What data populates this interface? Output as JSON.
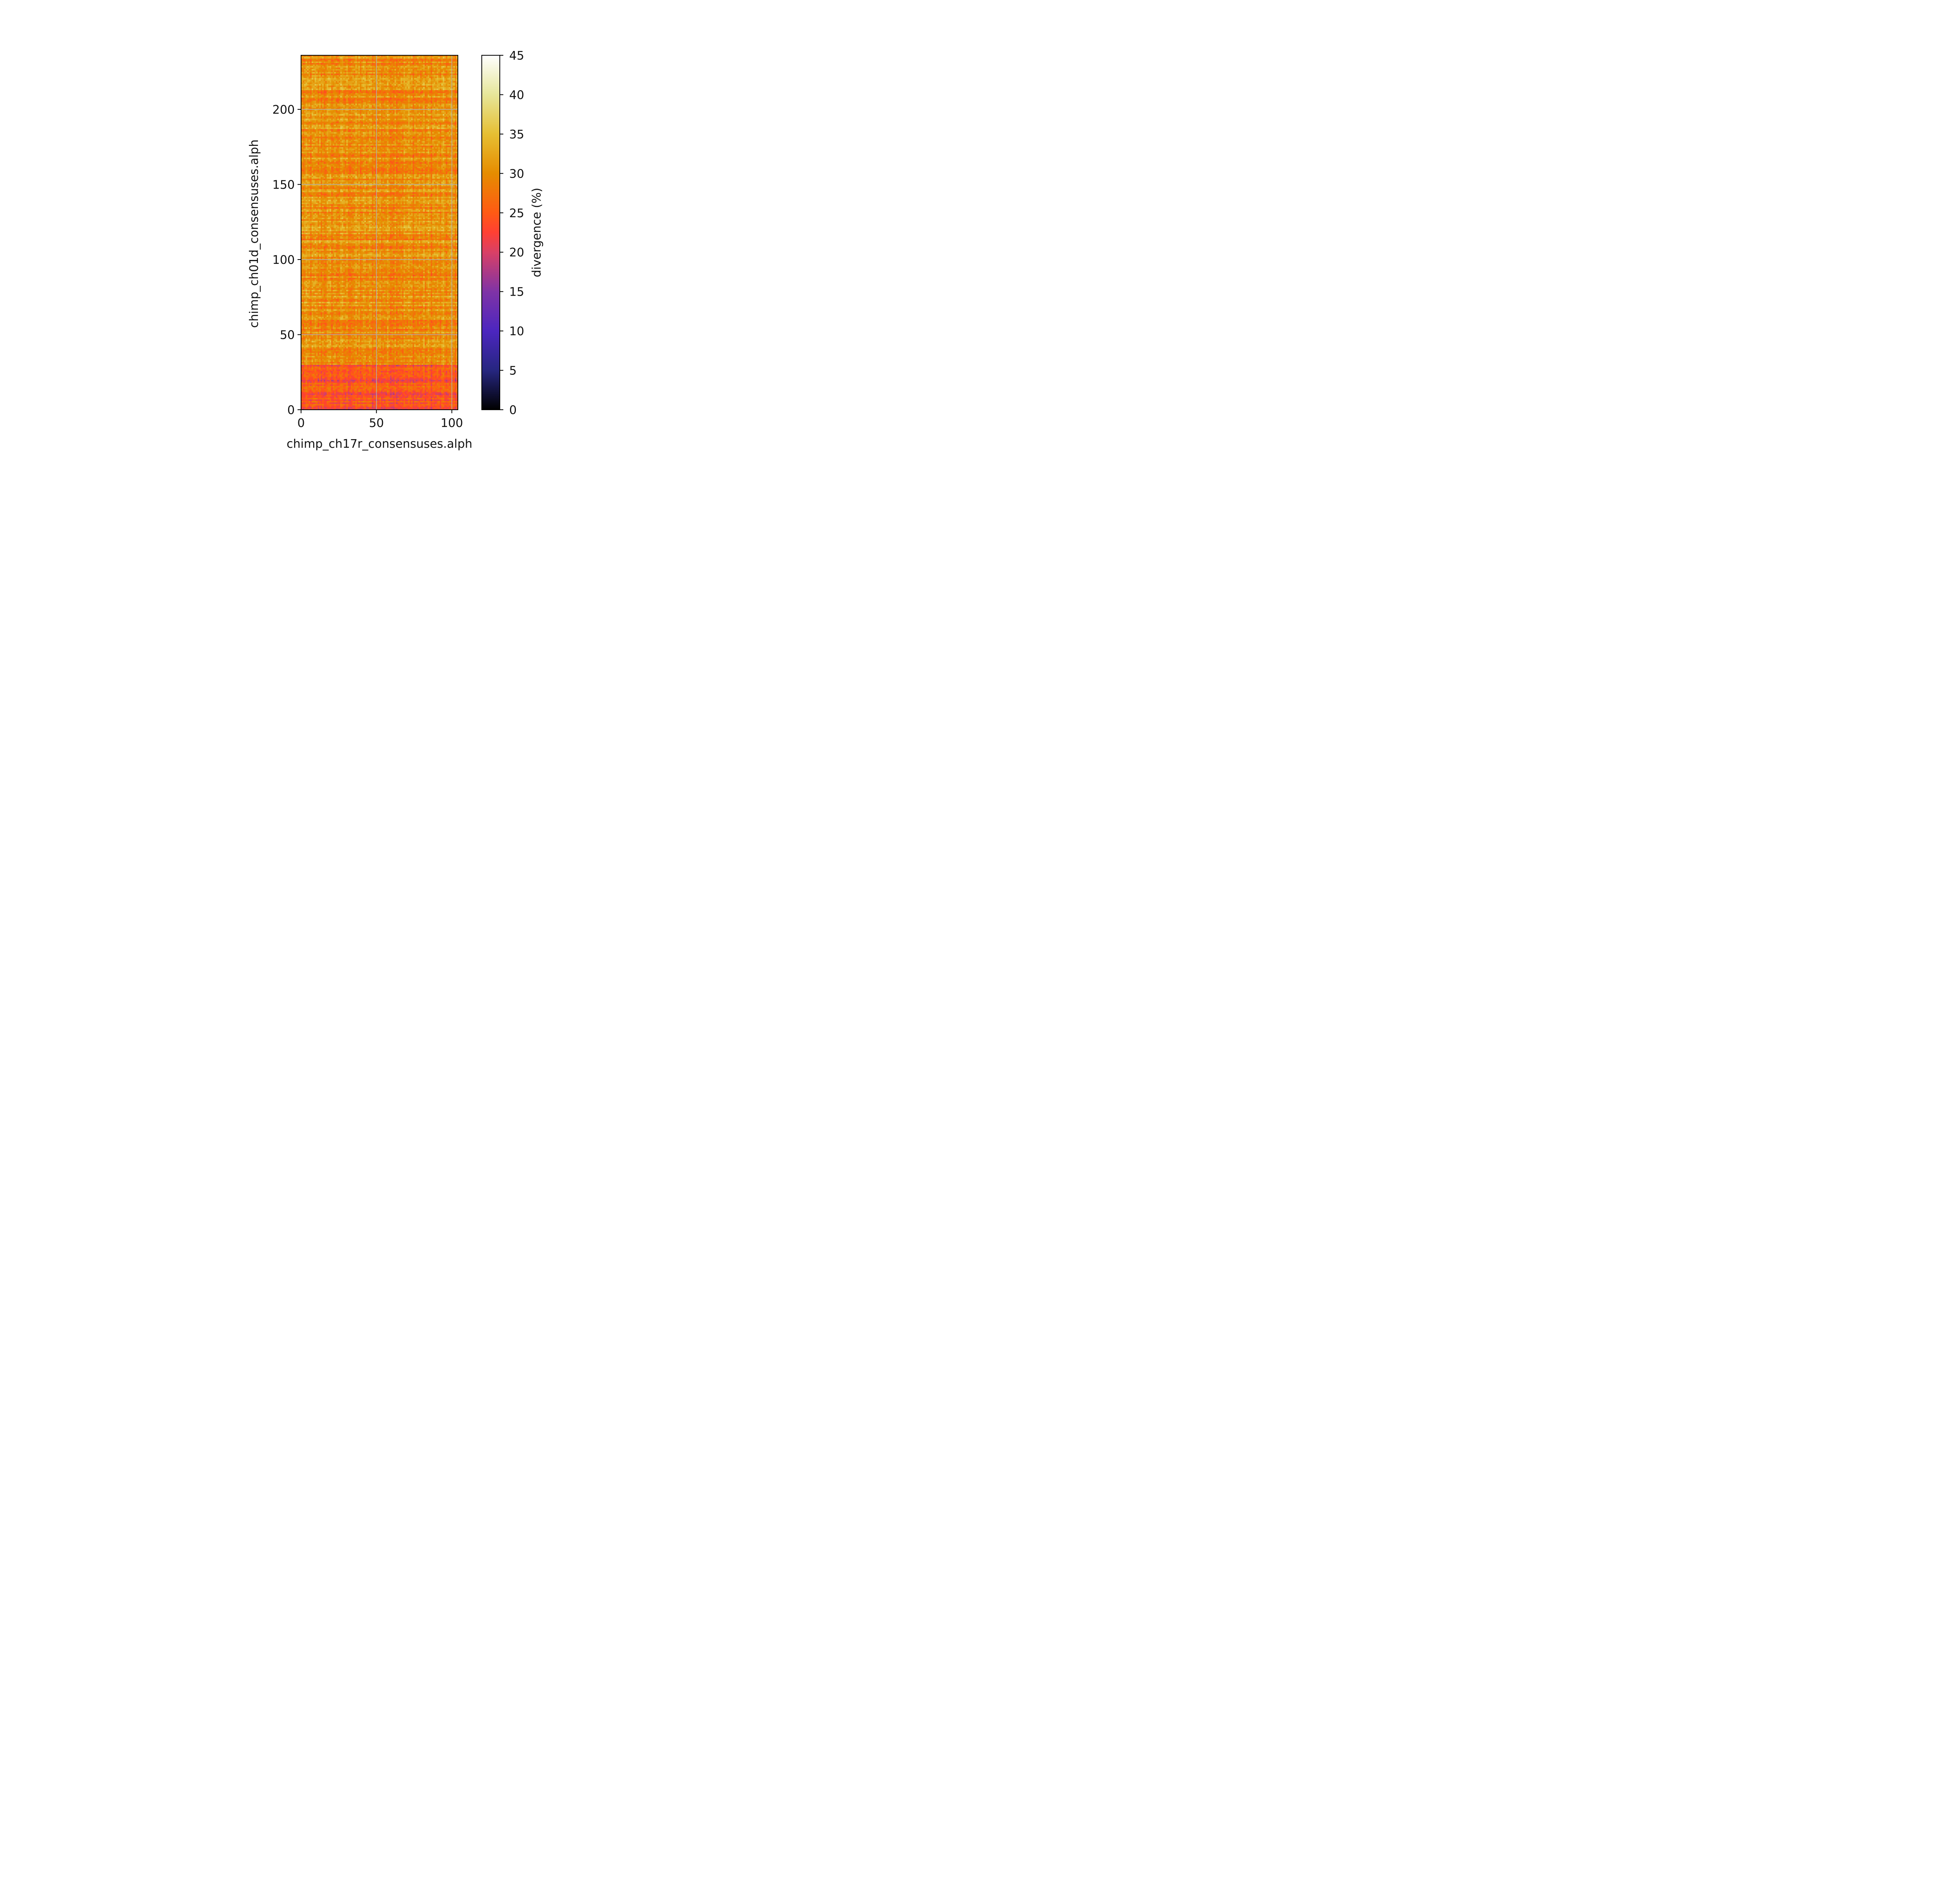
{
  "chart_data": {
    "type": "heatmap",
    "xlabel": "chimp_ch17r_consensuses.alph",
    "ylabel": "chimp_ch01d_consensuses.alph",
    "xlim": [
      0,
      104
    ],
    "ylim": [
      0,
      236
    ],
    "x_ticks": [
      0,
      50,
      100
    ],
    "y_ticks": [
      0,
      50,
      100,
      150,
      200
    ],
    "colorbar": {
      "label": "divergence (%)",
      "range": [
        0,
        45
      ],
      "ticks": [
        0,
        5,
        10,
        15,
        20,
        25,
        30,
        35,
        40,
        45
      ],
      "colormap": "CMRmap",
      "stops": [
        {
          "v": 0,
          "color": "#000000"
        },
        {
          "v": 5,
          "color": "#262680"
        },
        {
          "v": 10,
          "color": "#4c26bf"
        },
        {
          "v": 15,
          "color": "#7f33a6"
        },
        {
          "v": 20,
          "color": "#d94066"
        },
        {
          "v": 22.5,
          "color": "#ff4033"
        },
        {
          "v": 25,
          "color": "#ff5a14"
        },
        {
          "v": 30,
          "color": "#e68c00"
        },
        {
          "v": 35,
          "color": "#e6bf33"
        },
        {
          "v": 40,
          "color": "#e6e699"
        },
        {
          "v": 45,
          "color": "#ffffff"
        }
      ]
    },
    "grid": true,
    "region_means": [
      {
        "y_from": 0,
        "y_to": 30,
        "divergence": 24
      },
      {
        "y_from": 30,
        "y_to": 236,
        "divergence": 30
      }
    ]
  }
}
